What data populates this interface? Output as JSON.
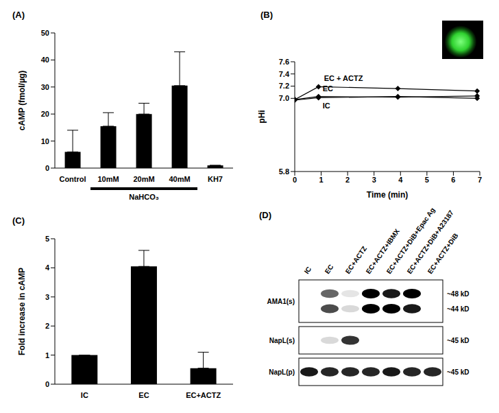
{
  "chart_data": [
    {
      "type": "bar",
      "title": "(A)",
      "y_label": "cAMP (fmol/µg)",
      "categories": [
        "Control",
        "10mM",
        "20mM",
        "40mM",
        "KH7"
      ],
      "values": [
        6,
        15.5,
        20,
        30.5,
        1
      ],
      "errors": [
        8,
        5,
        4,
        12.5,
        0
      ],
      "color": "#000000",
      "ylim": [
        0,
        50
      ],
      "yticks": [
        0,
        10,
        20,
        30,
        40,
        50
      ],
      "annotations": [
        {
          "text": "NaHCO₃",
          "categories": [
            "10mM",
            "20mM",
            "40mM"
          ]
        }
      ]
    },
    {
      "type": "line",
      "title": "(B)",
      "x_label": "Time (min)",
      "y_label": "pHi",
      "x": [
        0,
        0.9,
        3.9,
        6.9
      ],
      "series": [
        {
          "name": "EC + ACTZ",
          "color": "#000000",
          "marker": "diamond",
          "values": [
            6.98,
            7.19,
            7.16,
            7.12
          ]
        },
        {
          "name": "EC",
          "color": "#000000",
          "marker": "diamond",
          "values": [
            6.98,
            7.03,
            7.02,
            7.04
          ]
        },
        {
          "name": "IC",
          "color": "#000000",
          "marker": "diamond",
          "values": [
            6.97,
            7.01,
            7.03,
            7.0
          ]
        }
      ],
      "xlim": [
        0,
        7
      ],
      "xticks": [
        0,
        1,
        2,
        3,
        4,
        5,
        6,
        7
      ],
      "ylim": [
        5.8,
        7.6
      ],
      "yticks": [
        5.8,
        {
          "value": 7,
          "label": "7.0"
        },
        7.2,
        7.4,
        7.6
      ]
    },
    {
      "type": "bar",
      "title": "(C)",
      "y_label": "Fold increase in cAMP",
      "categories": [
        "IC",
        "EC",
        "EC+ACTZ"
      ],
      "values": [
        1,
        4.05,
        0.55
      ],
      "errors": [
        0,
        0.55,
        0.55
      ],
      "color": "#000000",
      "ylim": [
        0,
        5
      ],
      "yticks": [
        0,
        1,
        2,
        3,
        4,
        5
      ]
    }
  ],
  "blot": {
    "title": "(D)",
    "lanes": [
      "IC",
      "EC",
      "EC+ACTZ",
      "EC+ACTZ+IBMX",
      "EC+ACTZ+DiB+Epac Ag",
      "EC+ACTZ+DiB+A23187",
      "EC+ACTZ+DiB"
    ],
    "rows": [
      {
        "label": "AMA1(s)",
        "bands": [
          {
            "size": "~48 kD",
            "intensity": [
              0,
              0.6,
              0.1,
              1,
              0.9,
              1,
              0
            ]
          },
          {
            "size": "~44 kD",
            "intensity": [
              0,
              0.7,
              0.15,
              1,
              1,
              0.9,
              0
            ]
          }
        ]
      },
      {
        "label": "NapL(s)",
        "bands": [
          {
            "size": "~45 kD",
            "intensity": [
              0,
              0.15,
              0.8,
              0,
              0,
              0,
              0
            ]
          }
        ]
      },
      {
        "label": "NapL(p)",
        "bands": [
          {
            "size": "~45 kD",
            "intensity": [
              0.9,
              0.85,
              0.85,
              0.85,
              0.9,
              0.85,
              0.85
            ]
          }
        ]
      }
    ]
  }
}
